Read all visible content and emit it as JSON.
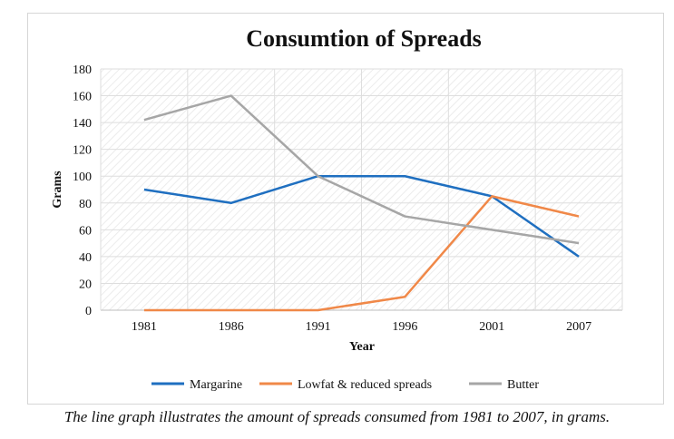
{
  "caption": "The line graph illustrates the amount of spreads consumed from 1981 to 2007, in grams.",
  "chart_data": {
    "type": "line",
    "title": "Consumtion of Spreads",
    "xlabel": "Year",
    "ylabel": "Grams",
    "categories": [
      "1981",
      "1986",
      "1991",
      "1996",
      "2001",
      "2007"
    ],
    "ylim": [
      0,
      180
    ],
    "yticks": [
      0,
      20,
      40,
      60,
      80,
      100,
      120,
      140,
      160,
      180
    ],
    "grid": true,
    "legend_position": "bottom",
    "series": [
      {
        "name": "Margarine",
        "color": "#1f6fc0",
        "values": [
          90,
          80,
          100,
          100,
          85,
          40
        ]
      },
      {
        "name": "Lowfat & reduced spreads",
        "color": "#f08848",
        "values": [
          0,
          0,
          0,
          10,
          85,
          70
        ]
      },
      {
        "name": "Butter",
        "color": "#a6a6a6",
        "values": [
          142,
          160,
          100,
          70,
          60,
          50
        ]
      }
    ]
  }
}
